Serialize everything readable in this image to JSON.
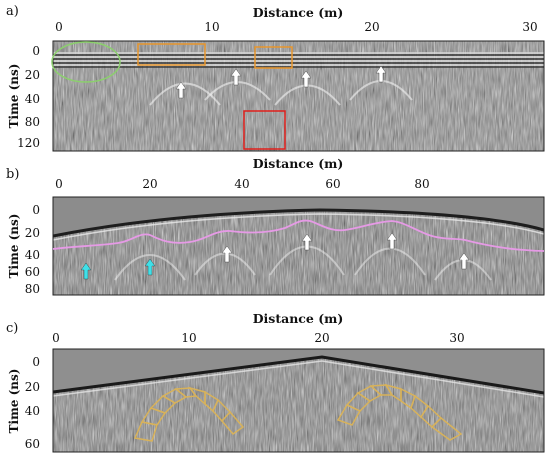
{
  "panels": [
    {
      "label": "a)",
      "x_title": "Distance (m)",
      "y_title": "Time (ns)",
      "x_ticks": [
        "0",
        "10",
        "20",
        "30"
      ],
      "y_ticks": [
        "0",
        "20",
        "40",
        "80",
        "120"
      ]
    },
    {
      "label": "b)",
      "x_title": "Distance (m)",
      "y_title": "Time (ns)",
      "x_ticks": [
        "0",
        "20",
        "40",
        "60",
        "80"
      ],
      "y_ticks": [
        "0",
        "20",
        "40",
        "60",
        "80"
      ]
    },
    {
      "label": "c)",
      "x_title": "Distance (m)",
      "y_title": "Time (ns)",
      "x_ticks": [
        "0",
        "10",
        "20",
        "30"
      ],
      "y_ticks": [
        "0",
        "20",
        "40",
        "60"
      ]
    }
  ],
  "annotation_colors": {
    "ellipse": "#8ccf6e",
    "orange_box": "#e8962c",
    "red_box": "#e0201c",
    "white_arrow": "#ffffff",
    "cyan_arrow": "#3fe0e8",
    "pink_line": "#e69ae6",
    "voussoir_outline": "#d8b25a"
  },
  "icons": {
    "white_arrow": "up-arrow-icon",
    "cyan_arrow": "up-arrow-icon"
  }
}
